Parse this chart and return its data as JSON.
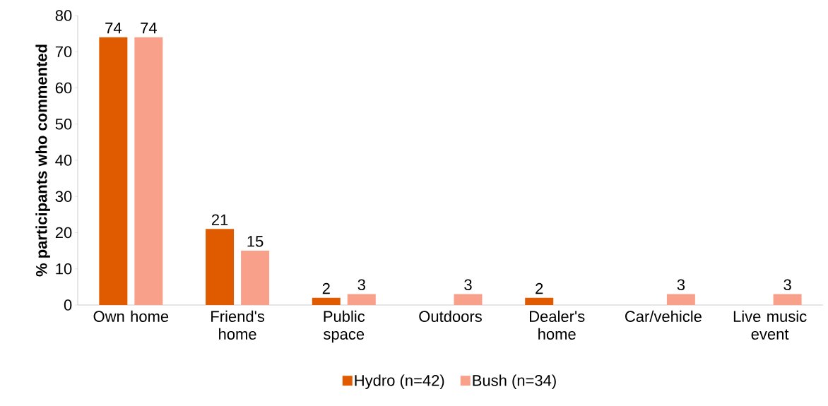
{
  "chart_data": {
    "type": "bar",
    "ylabel": "% participants who commented",
    "categories": [
      "Own home",
      "Friend's home",
      "Public space",
      "Outdoors",
      "Dealer's home",
      "Car/vehicle",
      "Live music event"
    ],
    "series": [
      {
        "name": "Hydro (n=42)",
        "color": "#e05a00",
        "values": [
          74,
          21,
          2,
          null,
          2,
          null,
          null
        ]
      },
      {
        "name": "Bush (n=34)",
        "color": "#f9a08a",
        "values": [
          74,
          15,
          3,
          3,
          null,
          3,
          3
        ]
      }
    ],
    "ylim": [
      0,
      80
    ],
    "yticks": [
      0,
      10,
      20,
      30,
      40,
      50,
      60,
      70,
      80
    ],
    "data_labels": true,
    "legend": "bottom",
    "grid": false
  }
}
